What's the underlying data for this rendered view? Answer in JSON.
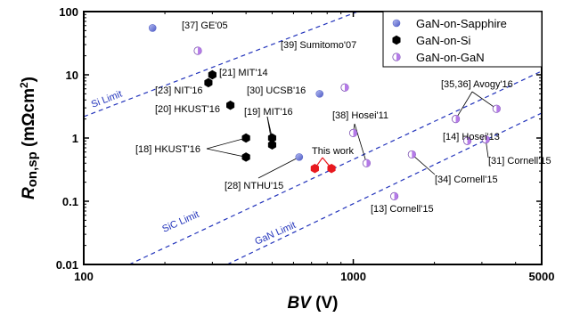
{
  "chart_data": {
    "type": "scatter",
    "x_scale": "log",
    "y_scale": "log",
    "xlim": [
      100,
      5000
    ],
    "ylim": [
      0.01,
      100
    ],
    "x_ticks": [
      "100",
      "1000",
      "5000"
    ],
    "y_ticks": [
      "100",
      "10",
      "1",
      "0.1",
      "0.01"
    ],
    "xlabel": {
      "italic": "BV",
      "rest": " (V)"
    },
    "ylabel": {
      "italic": "R",
      "sub": "on,sp",
      "rest": " (mΩcm",
      "sup": "2",
      "end": ")"
    },
    "legend_position": "top-right",
    "colors": {
      "sapphire": "#6a77dd",
      "si": "#000000",
      "gan": "#b57ae8",
      "this_work": "#e8191f",
      "limit_line": "#2233bb",
      "axis": "#000000"
    },
    "series": [
      {
        "name": "GaN-on-Sapphire",
        "marker": "circle",
        "points": [
          {
            "x": 180,
            "y": 55,
            "label": "[37] GE'05"
          },
          {
            "x": 750,
            "y": 5,
            "label": "[30] UCSB'16"
          },
          {
            "x": 630,
            "y": 0.5,
            "label": "[28] NTHU'15"
          }
        ]
      },
      {
        "name": "GaN-on-Si",
        "marker": "hexagon",
        "points": [
          {
            "x": 300,
            "y": 10,
            "label": "[21] MIT'14"
          },
          {
            "x": 290,
            "y": 7.5,
            "label": "[23] NIT'16"
          },
          {
            "x": 350,
            "y": 3.3,
            "label": "[20] HKUST'16"
          },
          {
            "x": 500,
            "y": 1.0,
            "label": "[19] MIT'16"
          },
          {
            "x": 500,
            "y": 0.78,
            "label": ""
          },
          {
            "x": 400,
            "y": 1.0,
            "label": "[18] HKUST'16"
          },
          {
            "x": 400,
            "y": 0.5,
            "label": ""
          }
        ]
      },
      {
        "name": "GaN-on-GaN",
        "marker": "half-circle",
        "points": [
          {
            "x": 265,
            "y": 24,
            "label": ""
          },
          {
            "x": 930,
            "y": 6.3,
            "label": "[39] Sumitomo'07"
          },
          {
            "x": 1000,
            "y": 1.2,
            "label": "[38] Hosei'11"
          },
          {
            "x": 1120,
            "y": 0.4,
            "label": ""
          },
          {
            "x": 1420,
            "y": 0.12,
            "label": "[13] Cornell'15"
          },
          {
            "x": 1650,
            "y": 0.55,
            "label": "[34] Cornell'15"
          },
          {
            "x": 2400,
            "y": 2.0,
            "label": "[35,36] Avogy'16"
          },
          {
            "x": 3400,
            "y": 2.9,
            "label": ""
          },
          {
            "x": 2650,
            "y": 0.9,
            "label": "[14] Hosei'13"
          },
          {
            "x": 3100,
            "y": 0.95,
            "label": "[31] Cornell'15"
          }
        ]
      },
      {
        "name": "This work",
        "marker": "hexagon",
        "in_legend": false,
        "points": [
          {
            "x": 720,
            "y": 0.33,
            "label": "This work"
          },
          {
            "x": 830,
            "y": 0.33,
            "label": ""
          }
        ]
      }
    ],
    "limit_lines": [
      {
        "label": "Si Limit"
      },
      {
        "label": "SiC Limit"
      },
      {
        "label": "GaN Limit"
      }
    ]
  }
}
